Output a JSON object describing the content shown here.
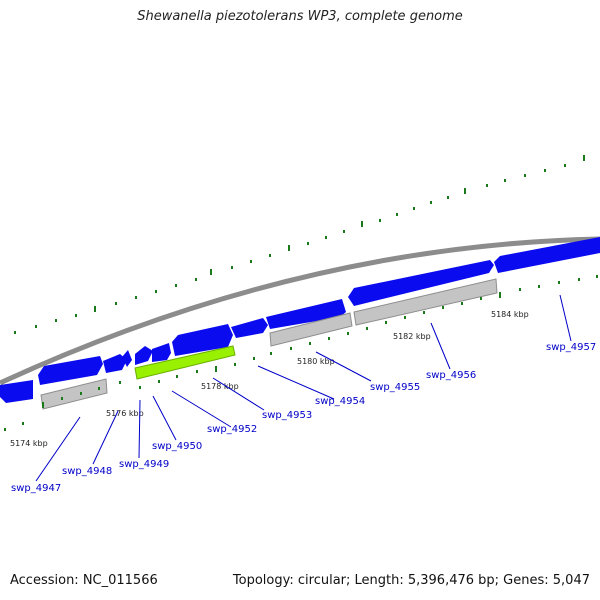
{
  "title": "Shewanella piezotolerans WP3, complete genome",
  "footer": {
    "accession": "Accession: NC_011566",
    "summary": "Topology: circular; Length: 5,396,476 bp; Genes: 5,047"
  },
  "colors": {
    "forward_gene": "#0b0bf0",
    "reverse_gene": "#0b0bf0",
    "other_feature": "#c4c4c4",
    "highlight_gene": "#99f000",
    "backbone": "#8c8c8c",
    "tick": "#1a7a1a",
    "label": "#0000c8"
  },
  "scale_labels": [
    "5174 kbp",
    "5176 kbp",
    "5178 kbp",
    "5180 kbp",
    "5182 kbp",
    "5184 kbp"
  ],
  "gene_labels": [
    "swp_4947",
    "swp_4948",
    "swp_4949",
    "swp_4950",
    "swp_4952",
    "swp_4953",
    "swp_4954",
    "swp_4955",
    "swp_4956",
    "swp_4957"
  ]
}
